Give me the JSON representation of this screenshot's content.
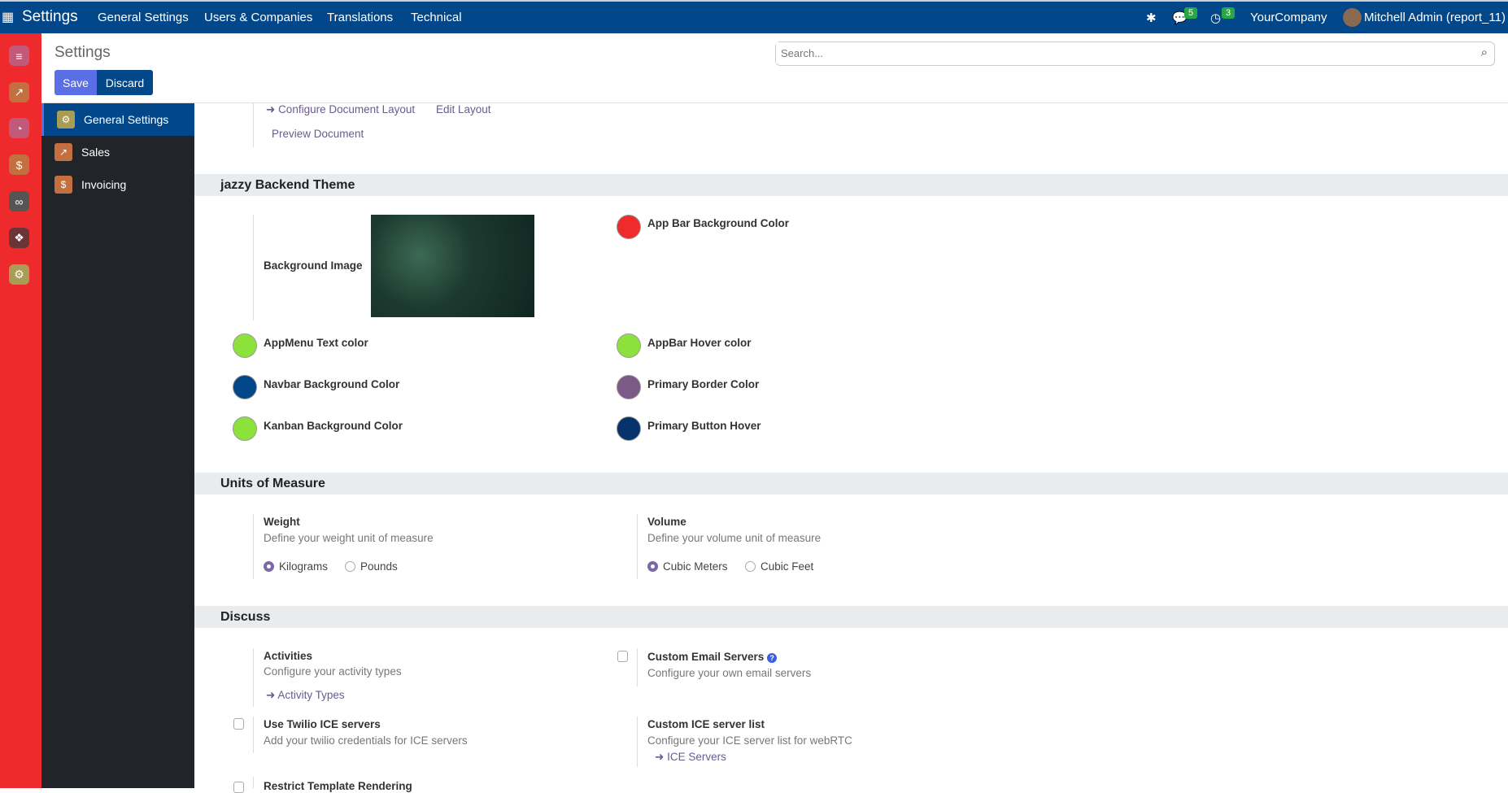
{
  "topbar": {
    "app": "Settings",
    "menu": [
      "General Settings",
      "Users & Companies",
      "Translations",
      "Technical"
    ],
    "messages_count": "5",
    "activities_count": "3",
    "company": "YourCompany",
    "user": "Mitchell Admin (report_11)",
    "color": "#01478a"
  },
  "rail": {
    "icons": [
      "discuss-icon",
      "sales-icon",
      "dashboard-icon",
      "invoicing-icon",
      "link-icon",
      "apps-icon",
      "settings-icon"
    ],
    "color": "#ef2a2c"
  },
  "control_panel": {
    "title": "Settings",
    "save": "Save",
    "discard": "Discard",
    "search_placeholder": "Search..."
  },
  "sidebar": {
    "items": [
      {
        "label": "General Settings",
        "active": true
      },
      {
        "label": "Sales"
      },
      {
        "label": "Invoicing"
      }
    ]
  },
  "document_layout": {
    "configure": "Configure Document Layout",
    "edit": "Edit Layout",
    "preview": "Preview Document"
  },
  "theme": {
    "title": "jazzy Backend Theme",
    "background_image": "Background Image",
    "colors": [
      {
        "label": "App Bar Background Color",
        "color": "#ee2c2c"
      },
      {
        "label": "AppMenu Text color",
        "color": "#8ce23a"
      },
      {
        "label": "AppBar Hover color",
        "color": "#8ce23a"
      },
      {
        "label": "Navbar Background Color",
        "color": "#01478a"
      },
      {
        "label": "Primary Border Color",
        "color": "#7d5987"
      },
      {
        "label": "Kanban Background Color",
        "color": "#8ce23a"
      },
      {
        "label": "Primary Button Hover",
        "color": "#06336b"
      }
    ]
  },
  "uom": {
    "title": "Units of Measure",
    "weight": {
      "label": "Weight",
      "desc": "Define your weight unit of measure",
      "options": [
        "Kilograms",
        "Pounds"
      ],
      "selected": "Kilograms"
    },
    "volume": {
      "label": "Volume",
      "desc": "Define your volume unit of measure",
      "options": [
        "Cubic Meters",
        "Cubic Feet"
      ],
      "selected": "Cubic Meters"
    }
  },
  "discuss": {
    "title": "Discuss",
    "activities": {
      "label": "Activities",
      "desc": "Configure your activity types",
      "link": "Activity Types"
    },
    "email": {
      "label": "Custom Email Servers",
      "desc": "Configure your own email servers",
      "checked": false
    },
    "twilio": {
      "label": "Use Twilio ICE servers",
      "desc": "Add your twilio credentials for ICE servers",
      "checked": false
    },
    "ice": {
      "label": "Custom ICE server list",
      "desc": "Configure your ICE server list for webRTC",
      "link": "ICE Servers"
    },
    "restrict": {
      "label": "Restrict Template Rendering",
      "checked": false
    }
  }
}
